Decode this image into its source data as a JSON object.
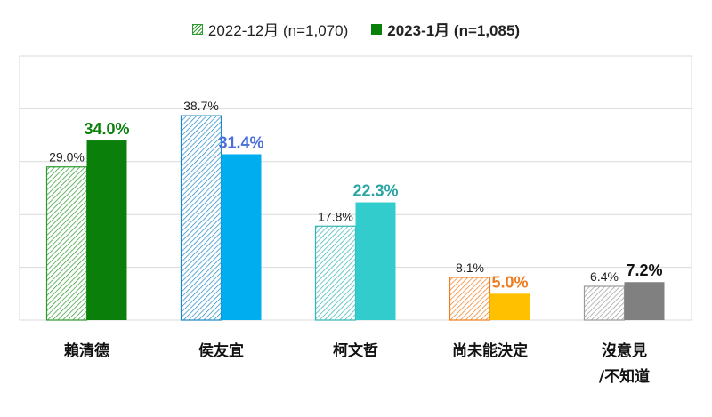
{
  "chart_data": {
    "type": "bar",
    "categories": [
      "賴清德",
      "侯友宜",
      "柯文哲",
      "尚未能決定",
      [
        "沒意見",
        "/不知道"
      ]
    ],
    "series": [
      {
        "name": "2022-12月 (n=1,070)",
        "values": [
          29.0,
          38.7,
          17.8,
          8.1,
          6.4
        ],
        "labels": [
          "29.0%",
          "38.7%",
          "17.8%",
          "8.1%",
          "6.4%"
        ],
        "style": "hatched"
      },
      {
        "name": "2023-1月 (n=1,085)",
        "values": [
          34.0,
          31.4,
          22.3,
          5.0,
          7.2
        ],
        "labels": [
          "34.0%",
          "31.4%",
          "22.3%",
          "5.0%",
          "7.2%"
        ],
        "style": "solid"
      }
    ],
    "colors": [
      "#0a7f0a",
      "#00aeef",
      "#33cccc",
      "#ffc000",
      "#808080"
    ],
    "hatch_colors": [
      "#2c9a2c",
      "#1f86c8",
      "#33b5b5",
      "#f07b1c",
      "#9a9a9a"
    ],
    "label_colors_series2": [
      "#0a7f0a",
      "#4a6fd8",
      "#2aa5a5",
      "#f07b1c",
      "#111111"
    ],
    "ylim": [
      0,
      50
    ],
    "grid": true,
    "legend": "top"
  }
}
